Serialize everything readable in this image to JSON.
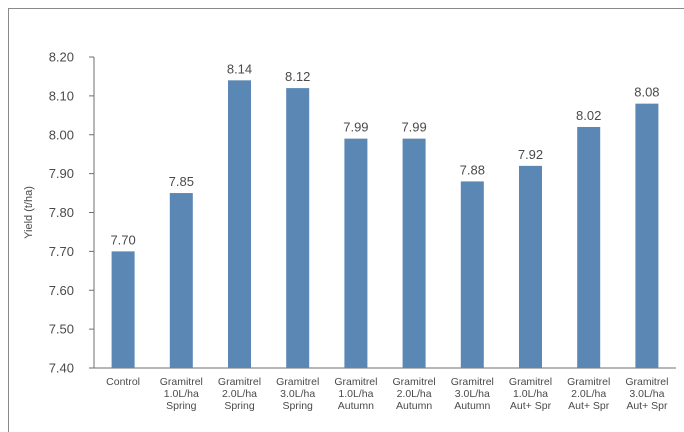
{
  "chart_data": {
    "type": "bar",
    "ylabel": "Yield (t/ha)",
    "ylim": [
      7.4,
      8.2
    ],
    "yticks": [
      "7.40",
      "7.50",
      "7.60",
      "7.70",
      "7.80",
      "7.90",
      "8.00",
      "8.10",
      "8.20"
    ],
    "categories": [
      [
        "Control"
      ],
      [
        "Gramitrel",
        "1.0L/ha",
        "Spring"
      ],
      [
        "Gramitrel",
        "2.0L/ha",
        "Spring"
      ],
      [
        "Gramitrel",
        "3.0L/ha",
        "Spring"
      ],
      [
        "Gramitrel",
        "1.0L/ha",
        "Autumn"
      ],
      [
        "Gramitrel",
        "2.0L/ha",
        "Autumn"
      ],
      [
        "Gramitrel",
        "3.0L/ha",
        "Autumn"
      ],
      [
        "Gramitrel",
        "1.0L/ha",
        "Aut+ Spr"
      ],
      [
        "Gramitrel",
        "2.0L/ha",
        "Aut+ Spr"
      ],
      [
        "Gramitrel",
        "3.0L/ha",
        "Aut+ Spr"
      ]
    ],
    "values": [
      7.7,
      7.85,
      8.14,
      8.12,
      7.99,
      7.99,
      7.88,
      7.92,
      8.02,
      8.08
    ],
    "value_labels": [
      "7.70",
      "7.85",
      "8.14",
      "8.12",
      "7.99",
      "7.99",
      "7.88",
      "7.92",
      "8.02",
      "8.08"
    ],
    "bar_color": "#5b87b4",
    "grid": false
  }
}
